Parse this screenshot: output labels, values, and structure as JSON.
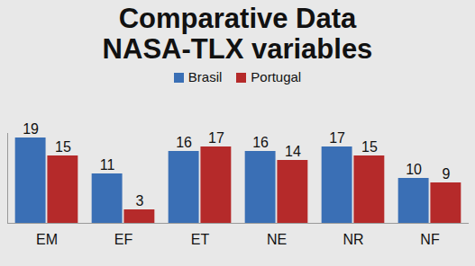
{
  "chart_data": {
    "type": "bar",
    "title": "Comparative Data\nNASA-TLX variables",
    "categories": [
      "EM",
      "EF",
      "ET",
      "NE",
      "NR",
      "NF"
    ],
    "series": [
      {
        "name": "Brasil",
        "color": "#3a6fb5",
        "values": [
          19,
          11,
          16,
          16,
          17,
          10
        ]
      },
      {
        "name": "Portugal",
        "color": "#b52a2a",
        "values": [
          15,
          3,
          17,
          14,
          15,
          9
        ]
      }
    ],
    "ylim": [
      0,
      20
    ],
    "legend": "top",
    "data_labels": true,
    "tick_labels": "x",
    "grid": false
  }
}
